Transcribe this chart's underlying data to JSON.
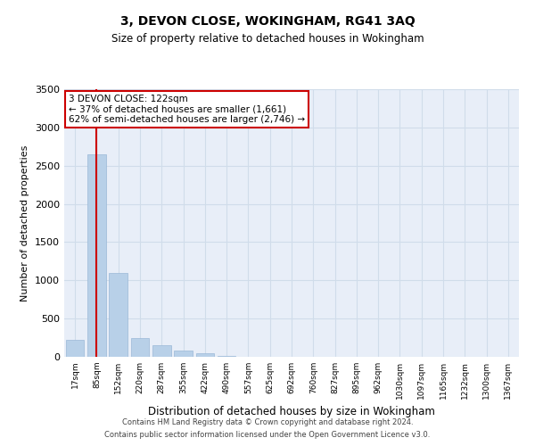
{
  "title": "3, DEVON CLOSE, WOKINGHAM, RG41 3AQ",
  "subtitle": "Size of property relative to detached houses in Wokingham",
  "xlabel": "Distribution of detached houses by size in Wokingham",
  "ylabel": "Number of detached properties",
  "bin_labels": [
    "17sqm",
    "85sqm",
    "152sqm",
    "220sqm",
    "287sqm",
    "355sqm",
    "422sqm",
    "490sqm",
    "557sqm",
    "625sqm",
    "692sqm",
    "760sqm",
    "827sqm",
    "895sqm",
    "962sqm",
    "1030sqm",
    "1097sqm",
    "1165sqm",
    "1232sqm",
    "1300sqm",
    "1367sqm"
  ],
  "bar_values": [
    220,
    2650,
    1100,
    250,
    150,
    80,
    50,
    10,
    0,
    0,
    0,
    0,
    0,
    0,
    0,
    0,
    0,
    0,
    0,
    0,
    0
  ],
  "bar_color": "#b8d0e8",
  "bar_edge_color": "#9ab8d8",
  "grid_color": "#d0dcea",
  "bg_color": "#e8eef8",
  "vline_x_index": 1,
  "vline_color": "#cc0000",
  "ylim": [
    0,
    3500
  ],
  "yticks": [
    0,
    500,
    1000,
    1500,
    2000,
    2500,
    3000,
    3500
  ],
  "annotation_text": "3 DEVON CLOSE: 122sqm\n← 37% of detached houses are smaller (1,661)\n62% of semi-detached houses are larger (2,746) →",
  "annotation_box_color": "#ffffff",
  "annotation_box_edge": "#cc0000",
  "title_fontsize": 10,
  "subtitle_fontsize": 8.5,
  "footer_line1": "Contains HM Land Registry data © Crown copyright and database right 2024.",
  "footer_line2": "Contains public sector information licensed under the Open Government Licence v3.0."
}
